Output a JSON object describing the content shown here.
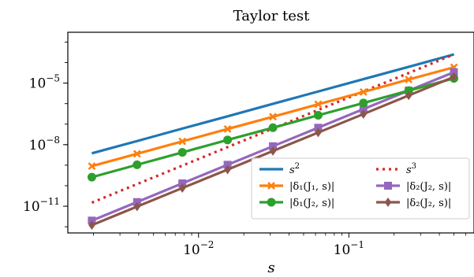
{
  "chart_data": {
    "type": "line",
    "title": "Taylor test",
    "xlabel": "s",
    "ylabel": "",
    "xscale": "log",
    "yscale": "log",
    "xlim": [
      0.00135,
      0.68
    ],
    "ylim": [
      5e-13,
      0.003
    ],
    "grid": false,
    "legend_position": "lower-right",
    "legend_columns": 2,
    "x_ticks": [
      {
        "value": 0.01,
        "mantissa": "10",
        "exp": "−2"
      },
      {
        "value": 0.1,
        "mantissa": "10",
        "exp": "−1"
      }
    ],
    "y_ticks": [
      {
        "value": 1e-05,
        "mantissa": "10",
        "exp": "−5"
      },
      {
        "value": 1e-08,
        "mantissa": "10",
        "exp": "−8"
      },
      {
        "value": 1e-11,
        "mantissa": "10",
        "exp": "−11"
      }
    ],
    "x": [
      0.00195,
      0.0039,
      0.0078,
      0.0156,
      0.03125,
      0.0625,
      0.125,
      0.25,
      0.5
    ],
    "series": [
      {
        "name": "s²",
        "label_base": "s",
        "label_sup": "2",
        "color": "#1f77b4",
        "dash": "solid",
        "marker": "none",
        "values": [
          3.8e-09,
          1.5e-08,
          6.1e-08,
          2.4e-07,
          9.8e-07,
          3.9e-06,
          1.56e-05,
          6.2e-05,
          0.00025
        ]
      },
      {
        "name": "s³",
        "label_base": "s",
        "label_sup": "3",
        "color": "#d62728",
        "dash": "dotted",
        "marker": "none",
        "values": [
          1.5e-11,
          1.2e-10,
          9.5e-10,
          7.6e-09,
          6.1e-08,
          4.9e-07,
          3.9e-06,
          3.1e-05,
          0.00025
        ]
      },
      {
        "name": "|δ₁(J₁, s)|",
        "color": "#ff7f0e",
        "dash": "solid",
        "marker": "x",
        "values": [
          9e-10,
          3.6e-09,
          1.45e-08,
          5.8e-08,
          2.3e-07,
          9.3e-07,
          3.7e-06,
          1.5e-05,
          5.9e-05
        ]
      },
      {
        "name": "|δ₂(J₂, s)|",
        "color": "#9467bd",
        "dash": "solid",
        "marker": "square",
        "values": [
          2e-12,
          1.6e-11,
          1.3e-10,
          1.05e-09,
          8.4e-09,
          6.7e-08,
          5.4e-07,
          4.3e-06,
          3.4e-05
        ]
      },
      {
        "name": "|δ₁(J₂, s)|",
        "color": "#2ca02c",
        "dash": "solid",
        "marker": "circle",
        "values": [
          2.6e-10,
          1.05e-09,
          4.2e-09,
          1.7e-08,
          6.7e-08,
          2.7e-07,
          1.07e-06,
          4.3e-06,
          1.7e-05
        ]
      },
      {
        "name": "|δ₂(J₂, s)|",
        "color": "#8c564b",
        "dash": "solid",
        "marker": "diamond",
        "values": [
          1.2e-12,
          9.6e-12,
          7.7e-11,
          6.1e-10,
          4.9e-09,
          3.9e-08,
          3.1e-07,
          2.5e-06,
          2e-05
        ]
      }
    ]
  }
}
